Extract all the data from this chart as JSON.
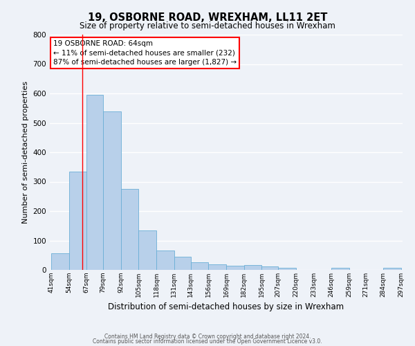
{
  "title": "19, OSBORNE ROAD, WREXHAM, LL11 2ET",
  "subtitle": "Size of property relative to semi-detached houses in Wrexham",
  "xlabel": "Distribution of semi-detached houses by size in Wrexham",
  "ylabel": "Number of semi-detached properties",
  "bin_edges": [
    41,
    54,
    67,
    79,
    92,
    105,
    118,
    131,
    143,
    156,
    169,
    182,
    195,
    207,
    220,
    233,
    246,
    259,
    271,
    284,
    297
  ],
  "bar_heights": [
    57,
    335,
    595,
    540,
    275,
    135,
    65,
    45,
    27,
    20,
    15,
    17,
    12,
    8,
    0,
    0,
    8,
    0,
    0,
    8
  ],
  "tick_labels": [
    "41sqm",
    "54sqm",
    "67sqm",
    "79sqm",
    "92sqm",
    "105sqm",
    "118sqm",
    "131sqm",
    "143sqm",
    "156sqm",
    "169sqm",
    "182sqm",
    "195sqm",
    "207sqm",
    "220sqm",
    "233sqm",
    "246sqm",
    "259sqm",
    "271sqm",
    "284sqm",
    "297sqm"
  ],
  "ylim": [
    0,
    800
  ],
  "yticks": [
    0,
    100,
    200,
    300,
    400,
    500,
    600,
    700,
    800
  ],
  "bar_color": "#b8d0ea",
  "bar_edge_color": "#6aaed6",
  "property_line_x": 64,
  "annotation_title": "19 OSBORNE ROAD: 64sqm",
  "annotation_line1": "← 11% of semi-detached houses are smaller (232)",
  "annotation_line2": "87% of semi-detached houses are larger (1,827) →",
  "footer_line1": "Contains HM Land Registry data © Crown copyright and database right 2024.",
  "footer_line2": "Contains public sector information licensed under the Open Government Licence v3.0.",
  "background_color": "#eef2f8",
  "grid_color": "#ffffff",
  "title_fontsize": 10.5,
  "subtitle_fontsize": 8.5,
  "tick_fontsize": 6.5,
  "ylabel_fontsize": 8,
  "xlabel_fontsize": 8.5,
  "annotation_fontsize": 7.5,
  "footer_fontsize": 5.5
}
